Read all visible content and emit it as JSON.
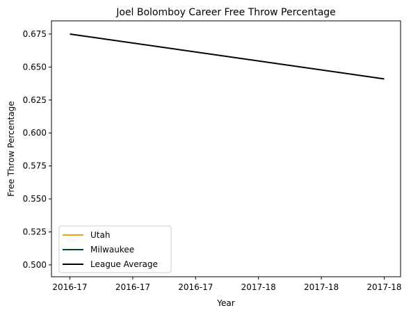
{
  "chart_data": {
    "type": "line",
    "title": "Joel Bolomboy Career Free Throw Percentage",
    "xlabel": "Year",
    "ylabel": "Free Throw Percentage",
    "x_ticks": [
      "2016-17",
      "2016-17",
      "2016-17",
      "2017-18",
      "2017-18",
      "2017-18"
    ],
    "y_ticks": [
      "0.500",
      "0.525",
      "0.550",
      "0.575",
      "0.600",
      "0.625",
      "0.650",
      "0.675"
    ],
    "ylim": [
      0.491,
      0.685
    ],
    "series": [
      {
        "name": "Utah",
        "color": "#f39c12",
        "x": [],
        "y": []
      },
      {
        "name": "Milwaukee",
        "color": "#00471b",
        "x": [],
        "y": []
      },
      {
        "name": "League Average",
        "color": "#000000",
        "x": [
          "2016-17",
          "2017-18"
        ],
        "y": [
          0.675,
          0.641
        ]
      }
    ],
    "legend_position": "lower-left",
    "grid": false
  }
}
